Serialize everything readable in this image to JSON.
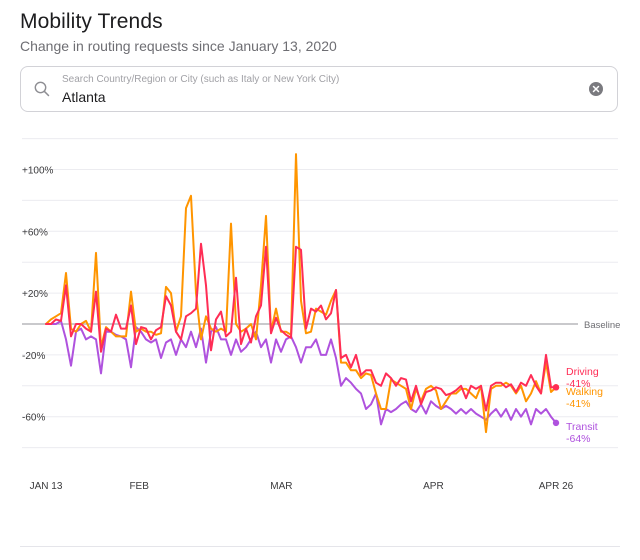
{
  "header": {
    "title": "Mobility Trends",
    "subtitle": "Change in routing requests since January 13, 2020"
  },
  "search": {
    "placeholder": "Search Country/Region or City (such as Italy or New York City)",
    "value": "Atlanta",
    "icon": "search-icon",
    "clear_icon": "close-circle-icon"
  },
  "chart_data": {
    "type": "line",
    "y_ticks": [
      "+100%",
      "+60%",
      "+20%",
      "-20%",
      "-60%"
    ],
    "y_tick_values": [
      100,
      60,
      20,
      -20,
      -60
    ],
    "ylim": [
      -85,
      112
    ],
    "baseline_label": "Baseline",
    "x_tick_labels": [
      "JAN 13",
      "FEB",
      "MAR",
      "APR",
      "APR 26"
    ],
    "x_tick_dates": [
      "2020-01-13",
      "2020-02-01",
      "2020-03-01",
      "2020-04-01",
      "2020-04-26"
    ],
    "x_start_date": "2020-01-13",
    "x_end_date": "2020-04-26",
    "series": [
      {
        "name": "Driving",
        "end_label": "-41%",
        "color": "#ff2d55",
        "values": [
          0,
          0,
          3,
          2,
          25,
          -8,
          0,
          0,
          -3,
          -5,
          21,
          -18,
          -3,
          -5,
          6,
          -3,
          -3,
          12,
          -13,
          -2,
          -3,
          -10,
          -4,
          -2,
          18,
          12,
          -5,
          -10,
          5,
          7,
          10,
          52,
          25,
          -17,
          3,
          8,
          -8,
          -5,
          30,
          -13,
          -3,
          -12,
          5,
          12,
          50,
          -6,
          4,
          -4,
          -7,
          -9,
          50,
          48,
          -3,
          10,
          8,
          12,
          3,
          7,
          22,
          -22,
          -20,
          -28,
          -20,
          -33,
          -30,
          -30,
          -38,
          -40,
          -32,
          -35,
          -40,
          -35,
          -36,
          -50,
          -40,
          -52,
          -44,
          -43,
          -41,
          -42,
          -46,
          -45,
          -43,
          -40,
          -48,
          -40,
          -42,
          -40,
          -56,
          -40,
          -38,
          -38,
          -41,
          -39,
          -44,
          -38,
          -40,
          -33,
          -40,
          -45,
          -20,
          -41,
          -41
        ]
      },
      {
        "name": "Walking",
        "end_label": "-41%",
        "color": "#ff9500",
        "values": [
          0,
          3,
          5,
          7,
          33,
          -3,
          -5,
          0,
          2,
          -5,
          46,
          -15,
          -2,
          -5,
          -8,
          -8,
          -8,
          21,
          -5,
          -3,
          -5,
          -5,
          -7,
          -6,
          24,
          20,
          -5,
          5,
          75,
          83,
          20,
          -10,
          5,
          -3,
          -5,
          -3,
          -5,
          65,
          0,
          -5,
          -3,
          0,
          -10,
          25,
          70,
          -5,
          10,
          -5,
          -5,
          -7,
          110,
          15,
          -6,
          -5,
          10,
          8,
          6,
          15,
          22,
          -25,
          -25,
          -30,
          -30,
          -35,
          -32,
          -33,
          -45,
          -55,
          -55,
          -36,
          -38,
          -40,
          -42,
          -55,
          -42,
          -50,
          -42,
          -40,
          -43,
          -55,
          -50,
          -45,
          -45,
          -42,
          -42,
          -45,
          -48,
          -40,
          -70,
          -42,
          -40,
          -40,
          -38,
          -40,
          -45,
          -40,
          -50,
          -45,
          -37,
          -45,
          -25,
          -44,
          -41
        ]
      },
      {
        "name": "Transit",
        "end_label": "-64%",
        "color": "#af52de",
        "values": [
          0,
          0,
          0,
          2,
          -10,
          -27,
          -5,
          -3,
          -10,
          -8,
          -10,
          -32,
          -5,
          -5,
          -7,
          -8,
          -10,
          -28,
          -2,
          -5,
          -10,
          -12,
          -10,
          -22,
          -12,
          -10,
          -20,
          -10,
          -15,
          -5,
          -15,
          -3,
          -25,
          -5,
          -2,
          -10,
          -10,
          -20,
          -10,
          -18,
          -15,
          -10,
          -5,
          -15,
          -10,
          -25,
          -10,
          -18,
          -10,
          -8,
          -15,
          -25,
          -15,
          -15,
          -10,
          -20,
          -20,
          -10,
          -22,
          -40,
          -35,
          -38,
          -42,
          -45,
          -55,
          -52,
          -45,
          -65,
          -55,
          -57,
          -55,
          -52,
          -50,
          -55,
          -57,
          -52,
          -58,
          -50,
          -53,
          -55,
          -53,
          -55,
          -58,
          -55,
          -58,
          -55,
          -58,
          -60,
          -62,
          -58,
          -55,
          -60,
          -55,
          -62,
          -55,
          -60,
          -55,
          -65,
          -55,
          -58,
          -55,
          -60,
          -64
        ]
      }
    ],
    "grid": true,
    "legend": "end-of-line labels"
  }
}
